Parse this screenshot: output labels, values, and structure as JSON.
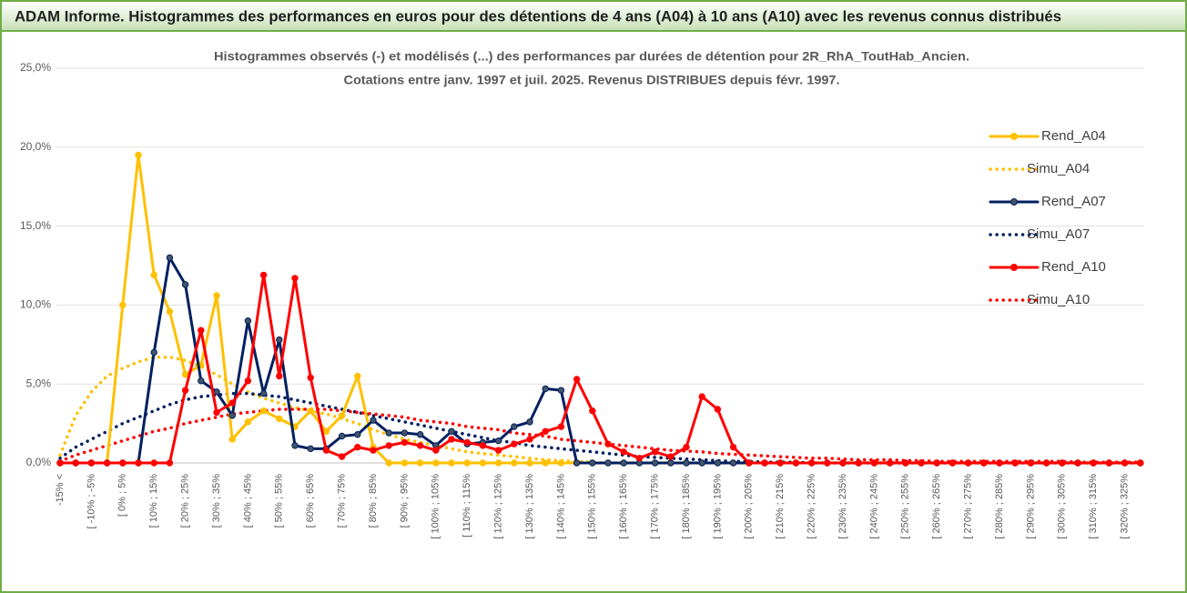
{
  "chart_data": {
    "type": "line",
    "title": "ADAM Informe. Histogrammes des performances en euros pour des détentions de 4 ans (A04) à 10 ans (A10) avec les revenus connus distribués",
    "subtitle": [
      "Histogrammes observés (-) et modélisés (...) des performances par durées de détention pour 2R_RhA_ToutHab_Ancien.",
      "Cotations entre janv. 1997 et juil. 2025. Revenus DISTRIBUES depuis févr. 1997."
    ],
    "categories": [
      "-15% <",
      null,
      "[ -10% ; -5%",
      null,
      "[ 0% ; 5%",
      null,
      "[ 10% ; 15%",
      null,
      "[ 20% ; 25%",
      null,
      "[ 30% ; 35%",
      null,
      "[ 40% ; 45%",
      null,
      "[ 50% ; 55%",
      null,
      "[ 60% ; 65%",
      null,
      "[ 70% ; 75%",
      null,
      "[ 80% ; 85%",
      null,
      "[ 90% ; 95%",
      null,
      "[ 100% ; 105%",
      null,
      "[ 110% ; 115%",
      null,
      "[ 120% ; 125%",
      null,
      "[ 130% ; 135%",
      null,
      "[ 140% ; 145%",
      null,
      "[ 150% ; 155%",
      null,
      "[ 160% ; 165%",
      null,
      "[ 170% ; 175%",
      null,
      "[ 180% ; 185%",
      null,
      "[ 190% ; 195%",
      null,
      "[ 200% ; 205%",
      null,
      "[ 210% ; 215%",
      null,
      "[ 220% ; 225%",
      null,
      "[ 230% ; 235%",
      null,
      "[ 240% ; 245%",
      null,
      "[ 250% ; 255%",
      null,
      "[ 260% ; 265%",
      null,
      "[ 270% ; 275%",
      null,
      "[ 280% ; 285%",
      null,
      "[ 290% ; 295%",
      null,
      "[ 300% ; 305%",
      null,
      "[ 310% ; 315%",
      null,
      "[ 320% ; 325%",
      null
    ],
    "ylim": [
      0,
      25
    ],
    "yticks": [
      {
        "value": 0,
        "label": "0,0%"
      },
      {
        "value": 5,
        "label": "5,0%"
      },
      {
        "value": 10,
        "label": "10,0%"
      },
      {
        "value": 15,
        "label": "15,0%"
      },
      {
        "value": 20,
        "label": "20,0%"
      },
      {
        "value": 25,
        "label": "25,0%"
      }
    ],
    "grid": true,
    "legend": "right",
    "series": [
      {
        "name": "Rend_A04",
        "color": "#ffc000",
        "line_style": "solid",
        "marker": true,
        "values": [
          0,
          0,
          0,
          0,
          10,
          19.5,
          11.9,
          9.6,
          5.6,
          6.2,
          10.6,
          1.5,
          2.6,
          3.3,
          2.8,
          2.3,
          3.3,
          2.0,
          3.0,
          5.5,
          1.0,
          0,
          0,
          0,
          0,
          0,
          0,
          0,
          0,
          0,
          0,
          0,
          0,
          0,
          0,
          0,
          0,
          0,
          0,
          0,
          0,
          0,
          0,
          0,
          0,
          0,
          0,
          0,
          0,
          0,
          0,
          0,
          0,
          0,
          0,
          0,
          0,
          0,
          0,
          0,
          0,
          0,
          0,
          0,
          0,
          0,
          0,
          0,
          0,
          0
        ]
      },
      {
        "name": "Simu_A04",
        "color": "#ffc000",
        "line_style": "dotted",
        "marker": false,
        "values": [
          0.5,
          3,
          4.5,
          5.5,
          6.0,
          6.4,
          6.7,
          6.7,
          6.5,
          6.1,
          5.6,
          5.0,
          4.5,
          4.1,
          3.8,
          3.5,
          3.3,
          3.1,
          2.8,
          2.5,
          2.1,
          1.8,
          1.5,
          1.3,
          1.1,
          0.9,
          0.7,
          0.6,
          0.5,
          0.4,
          0.3,
          0.2,
          0.15,
          0.1,
          0.05,
          0,
          0,
          0,
          0,
          0,
          0,
          0,
          0,
          0,
          0,
          0,
          0,
          0,
          0,
          0,
          0,
          0,
          0,
          0,
          0,
          0,
          0,
          0,
          0,
          0,
          0,
          0,
          0,
          0,
          0,
          0,
          0,
          0,
          0,
          0
        ]
      },
      {
        "name": "Rend_A07",
        "color": "#002060",
        "marker_color": "#44546a",
        "line_style": "solid",
        "marker": true,
        "values": [
          0,
          0,
          0,
          0,
          0,
          0,
          7.0,
          13.0,
          11.3,
          5.2,
          4.5,
          3.0,
          9.0,
          4.4,
          7.8,
          1.1,
          0.9,
          0.9,
          1.7,
          1.8,
          2.7,
          1.9,
          1.9,
          1.8,
          1.1,
          2.0,
          1.2,
          1.3,
          1.4,
          2.3,
          2.6,
          4.7,
          4.6,
          0,
          0,
          0,
          0,
          0,
          0,
          0,
          0,
          0,
          0,
          0,
          0,
          0,
          0,
          0,
          0,
          0,
          0,
          0,
          0,
          0,
          0,
          0,
          0,
          0,
          0,
          0,
          0,
          0,
          0,
          0,
          0,
          0,
          0,
          0,
          0,
          0
        ]
      },
      {
        "name": "Simu_A07",
        "color": "#002060",
        "line_style": "dotted",
        "marker": false,
        "values": [
          0.3,
          1.0,
          1.5,
          2.0,
          2.5,
          2.9,
          3.3,
          3.7,
          4.0,
          4.2,
          4.3,
          4.4,
          4.4,
          4.3,
          4.2,
          4.0,
          3.8,
          3.6,
          3.4,
          3.2,
          3.0,
          2.8,
          2.6,
          2.4,
          2.2,
          2.0,
          1.8,
          1.6,
          1.4,
          1.3,
          1.1,
          1.0,
          0.9,
          0.8,
          0.7,
          0.6,
          0.5,
          0.4,
          0.35,
          0.3,
          0.25,
          0.2,
          0.15,
          0.1,
          0.1,
          0.05,
          0.05,
          0.05,
          0,
          0,
          0,
          0,
          0,
          0,
          0,
          0,
          0,
          0,
          0,
          0,
          0,
          0,
          0,
          0,
          0,
          0,
          0,
          0,
          0,
          0
        ]
      },
      {
        "name": "Rend_A10",
        "color": "#ff0000",
        "line_style": "solid",
        "marker": true,
        "values": [
          0,
          0,
          0,
          0,
          0,
          0,
          0,
          0,
          4.6,
          8.4,
          3.2,
          3.8,
          5.2,
          11.9,
          5.5,
          11.7,
          5.4,
          0.8,
          0.4,
          1.0,
          0.8,
          1.1,
          1.3,
          1.1,
          0.8,
          1.5,
          1.3,
          1.1,
          0.8,
          1.2,
          1.5,
          2.0,
          2.3,
          5.3,
          3.3,
          1.2,
          0.7,
          0.3,
          0.7,
          0.4,
          1.0,
          4.2,
          3.4,
          1.0,
          0,
          0,
          0,
          0,
          0,
          0,
          0,
          0,
          0,
          0,
          0,
          0,
          0,
          0,
          0,
          0,
          0,
          0,
          0,
          0,
          0,
          0,
          0,
          0,
          0,
          0
        ]
      },
      {
        "name": "Simu_A10",
        "color": "#ff0000",
        "line_style": "dotted",
        "marker": false,
        "values": [
          0.1,
          0.5,
          0.8,
          1.1,
          1.4,
          1.7,
          2.0,
          2.2,
          2.5,
          2.7,
          2.9,
          3.1,
          3.2,
          3.3,
          3.4,
          3.4,
          3.4,
          3.4,
          3.3,
          3.2,
          3.1,
          3.0,
          2.9,
          2.7,
          2.6,
          2.5,
          2.3,
          2.2,
          2.1,
          1.9,
          1.8,
          1.7,
          1.5,
          1.4,
          1.3,
          1.2,
          1.1,
          1.0,
          0.9,
          0.8,
          0.75,
          0.7,
          0.6,
          0.55,
          0.5,
          0.45,
          0.4,
          0.35,
          0.3,
          0.3,
          0.25,
          0.2,
          0.2,
          0.2,
          0.15,
          0.15,
          0.1,
          0.1,
          0.1,
          0.1,
          0.1,
          0.1,
          0.1,
          0.1,
          0.1,
          0.05,
          0.05,
          0.05,
          0.05,
          0.05
        ]
      }
    ]
  }
}
